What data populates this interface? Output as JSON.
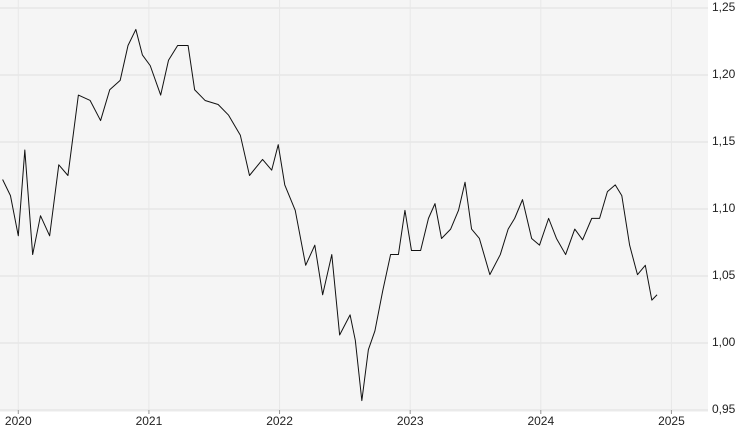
{
  "chart_data": {
    "type": "line",
    "x": [
      2019.88,
      2019.94,
      2020.0,
      2020.05,
      2020.11,
      2020.17,
      2020.24,
      2020.31,
      2020.38,
      2020.46,
      2020.55,
      2020.63,
      2020.7,
      2020.78,
      2020.84,
      2020.9,
      2020.95,
      2021.01,
      2021.09,
      2021.15,
      2021.22,
      2021.3,
      2021.35,
      2021.43,
      2021.53,
      2021.61,
      2021.7,
      2021.77,
      2021.87,
      2021.94,
      2021.99,
      2022.04,
      2022.12,
      2022.2,
      2022.27,
      2022.33,
      2022.4,
      2022.46,
      2022.54,
      2022.58,
      2022.63,
      2022.68,
      2022.73,
      2022.79,
      2022.85,
      2022.91,
      2022.96,
      2023.01,
      2023.08,
      2023.14,
      2023.19,
      2023.24,
      2023.31,
      2023.37,
      2023.42,
      2023.47,
      2023.53,
      2023.61,
      2023.69,
      2023.75,
      2023.8,
      2023.86,
      2023.93,
      2023.99,
      2024.06,
      2024.12,
      2024.19,
      2024.26,
      2024.32,
      2024.39,
      2024.45,
      2024.51,
      2024.57,
      2024.62,
      2024.68,
      2024.74,
      2024.8,
      2024.85,
      2024.89
    ],
    "series": [
      {
        "color": "#111111",
        "values": [
          1.122,
          1.11,
          1.08,
          1.144,
          1.066,
          1.095,
          1.08,
          1.133,
          1.125,
          1.185,
          1.181,
          1.166,
          1.189,
          1.196,
          1.222,
          1.234,
          1.215,
          1.207,
          1.185,
          1.211,
          1.222,
          1.222,
          1.189,
          1.181,
          1.178,
          1.17,
          1.155,
          1.125,
          1.137,
          1.129,
          1.148,
          1.118,
          1.099,
          1.058,
          1.073,
          1.036,
          1.066,
          1.006,
          1.021,
          1.002,
          0.957,
          0.995,
          1.009,
          1.039,
          1.066,
          1.066,
          1.099,
          1.069,
          1.069,
          1.093,
          1.104,
          1.078,
          1.085,
          1.099,
          1.12,
          1.085,
          1.078,
          1.051,
          1.066,
          1.085,
          1.093,
          1.107,
          1.078,
          1.073,
          1.093,
          1.078,
          1.066,
          1.085,
          1.077,
          1.093,
          1.093,
          1.113,
          1.118,
          1.11,
          1.073,
          1.051,
          1.058,
          1.032,
          1.036
        ]
      }
    ],
    "xlim": [
      2019.86,
      2025.28
    ],
    "xticks": [
      2020,
      2021,
      2022,
      2023,
      2024,
      2025
    ],
    "ylim": [
      0.95,
      1.25
    ],
    "yticks": [
      {
        "value": 0.95,
        "label": "0,95"
      },
      {
        "value": 1.0,
        "label": "1,00"
      },
      {
        "value": 1.05,
        "label": "1,05"
      },
      {
        "value": 1.1,
        "label": "1,10"
      },
      {
        "value": 1.15,
        "label": "1,15"
      },
      {
        "value": 1.2,
        "label": "1,20"
      },
      {
        "value": 1.25,
        "label": "1,25"
      }
    ],
    "grid": true
  }
}
